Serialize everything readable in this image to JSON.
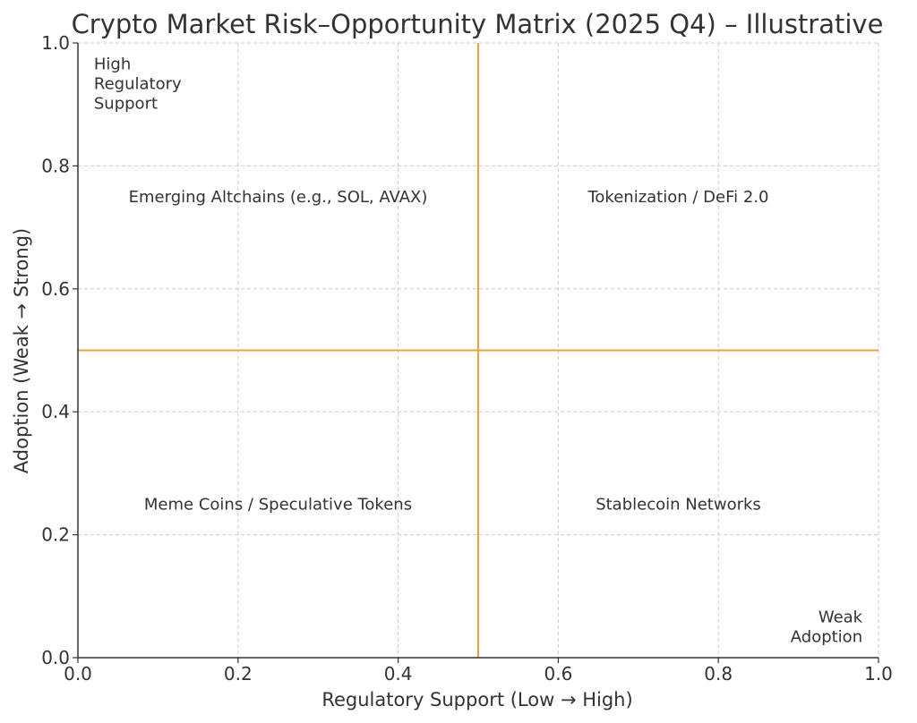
{
  "chart_data": {
    "type": "scatter",
    "title": "Crypto Market Risk–Opportunity Matrix (2025 Q4) – Illustrative",
    "xlabel": "Regulatory Support (Low → High)",
    "ylabel": "Adoption (Weak → Strong)",
    "xlim": [
      0,
      1
    ],
    "ylim": [
      0,
      1
    ],
    "xticks": [
      0.0,
      0.2,
      0.4,
      0.6,
      0.8,
      1.0
    ],
    "yticks": [
      0.0,
      0.2,
      0.4,
      0.6,
      0.8,
      1.0
    ],
    "xtick_labels": [
      "0.0",
      "0.2",
      "0.4",
      "0.6",
      "0.8",
      "1.0"
    ],
    "ytick_labels": [
      "0.0",
      "0.2",
      "0.4",
      "0.6",
      "0.8",
      "1.0"
    ],
    "grid": true,
    "divider_color": "#E8A33D",
    "grid_color": "#cccccc",
    "divider_x": 0.5,
    "divider_y": 0.5,
    "quadrants": [
      {
        "label": "Emerging Altchains (e.g., SOL, AVAX)",
        "x": 0.25,
        "y": 0.75
      },
      {
        "label": "Tokenization / DeFi 2.0",
        "x": 0.75,
        "y": 0.75
      },
      {
        "label": "Meme Coins / Speculative Tokens",
        "x": 0.25,
        "y": 0.25
      },
      {
        "label": "Stablecoin Networks",
        "x": 0.75,
        "y": 0.25
      }
    ],
    "annotations": [
      {
        "lines": [
          "High",
          "Regulatory",
          "Support"
        ],
        "x": 0.02,
        "y": 0.98,
        "anchor": "top-left"
      },
      {
        "lines": [
          "Weak",
          "Adoption"
        ],
        "x": 0.98,
        "y": 0.02,
        "anchor": "bottom-right"
      }
    ]
  }
}
